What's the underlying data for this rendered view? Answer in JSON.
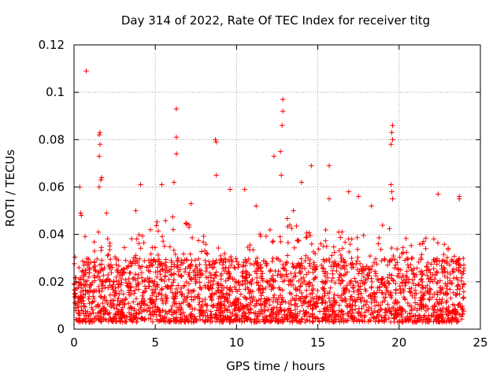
{
  "chart_data": {
    "type": "scatter",
    "title": "Day 314 of 2022, Rate Of TEC Index for receiver titg",
    "xlabel": "GPS time / hours",
    "ylabel": "ROTI / TECUs",
    "xlim": [
      0,
      25
    ],
    "ylim": [
      0,
      0.12
    ],
    "xticks": [
      0,
      5,
      10,
      15,
      20,
      25
    ],
    "xtick_labels": [
      "0",
      "5",
      "10",
      "15",
      "20",
      "25"
    ],
    "yticks": [
      0,
      0.02,
      0.04,
      0.06,
      0.08,
      0.1,
      0.12
    ],
    "ytick_labels": [
      "0",
      "0.02",
      "0.04",
      "0.06",
      "0.08",
      "0.1",
      "0.12"
    ],
    "grid": true,
    "marker": "+",
    "color": "#ff0000",
    "series": [
      {
        "name": "ROTI",
        "points": [
          [
            0.75,
            0.109
          ],
          [
            6.3,
            0.093
          ],
          [
            12.85,
            0.097
          ],
          [
            12.85,
            0.092
          ],
          [
            12.8,
            0.086
          ],
          [
            19.6,
            0.086
          ],
          [
            19.55,
            0.083
          ],
          [
            19.6,
            0.08
          ],
          [
            19.5,
            0.078
          ],
          [
            8.7,
            0.08
          ],
          [
            8.75,
            0.079
          ],
          [
            1.6,
            0.083
          ],
          [
            1.55,
            0.082
          ],
          [
            1.6,
            0.078
          ],
          [
            6.3,
            0.081
          ],
          [
            6.3,
            0.074
          ],
          [
            12.7,
            0.075
          ],
          [
            1.55,
            0.073
          ],
          [
            12.3,
            0.073
          ],
          [
            14.6,
            0.069
          ],
          [
            15.7,
            0.069
          ],
          [
            8.75,
            0.065
          ],
          [
            12.75,
            0.065
          ],
          [
            1.7,
            0.064
          ],
          [
            1.65,
            0.063
          ],
          [
            6.15,
            0.062
          ],
          [
            5.4,
            0.061
          ],
          [
            4.1,
            0.061
          ],
          [
            0.35,
            0.06
          ],
          [
            1.55,
            0.06
          ],
          [
            9.6,
            0.059
          ],
          [
            10.5,
            0.059
          ],
          [
            19.5,
            0.061
          ],
          [
            19.55,
            0.058
          ],
          [
            14.0,
            0.062
          ],
          [
            16.9,
            0.058
          ],
          [
            22.4,
            0.057
          ],
          [
            23.7,
            0.056
          ],
          [
            17.5,
            0.056
          ],
          [
            19.6,
            0.055
          ],
          [
            15.7,
            0.055
          ],
          [
            0.4,
            0.049
          ],
          [
            13.5,
            0.05
          ],
          [
            2.0,
            0.049
          ],
          [
            0.45,
            0.048
          ],
          [
            11.2,
            0.052
          ],
          [
            23.7,
            0.055
          ],
          [
            18.3,
            0.052
          ],
          [
            7.2,
            0.053
          ],
          [
            3.8,
            0.05
          ]
        ],
        "dense_band": {
          "x_range": [
            0,
            24
          ],
          "y_typical_range": [
            0.003,
            0.03
          ],
          "y_upper_envelope": [
            [
              0,
              0.04
            ],
            [
              1,
              0.042
            ],
            [
              2,
              0.04
            ],
            [
              3,
              0.036
            ],
            [
              4,
              0.042
            ],
            [
              5,
              0.045
            ],
            [
              6,
              0.048
            ],
            [
              7,
              0.045
            ],
            [
              8,
              0.04
            ],
            [
              9,
              0.035
            ],
            [
              10,
              0.03
            ],
            [
              11,
              0.042
            ],
            [
              12,
              0.045
            ],
            [
              13,
              0.048
            ],
            [
              14,
              0.042
            ],
            [
              15,
              0.04
            ],
            [
              16,
              0.045
            ],
            [
              17,
              0.038
            ],
            [
              18,
              0.04
            ],
            [
              19,
              0.045
            ],
            [
              20,
              0.04
            ],
            [
              21,
              0.038
            ],
            [
              22,
              0.04
            ],
            [
              23,
              0.035
            ],
            [
              24,
              0.033
            ]
          ]
        }
      }
    ]
  }
}
